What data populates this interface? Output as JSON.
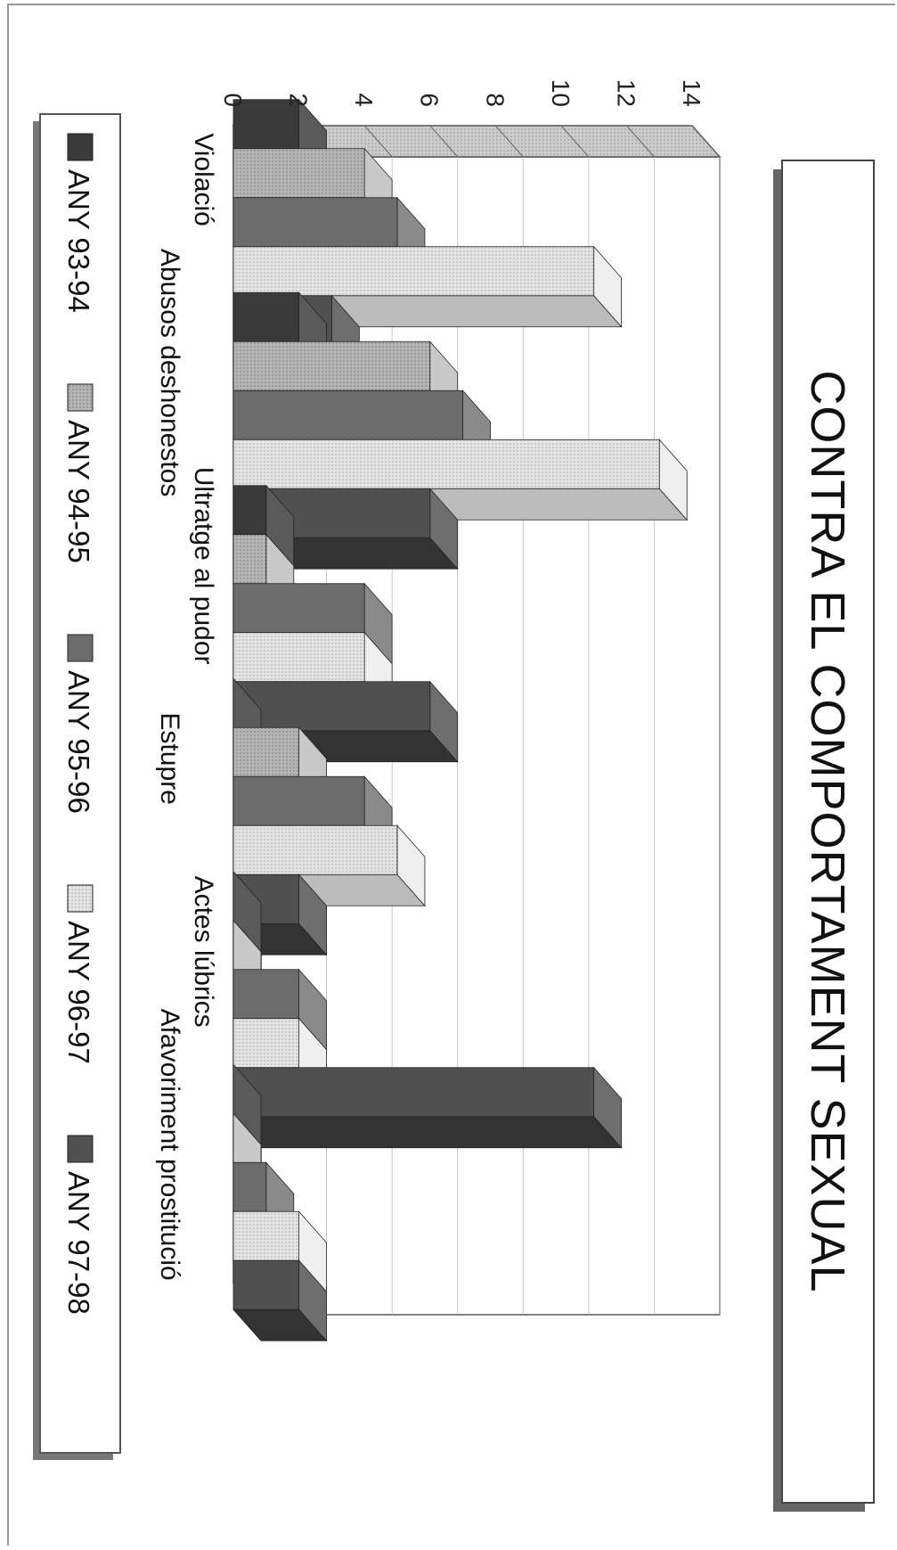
{
  "chart_data": {
    "type": "bar",
    "title": "CONTRA EL COMPORTAMENT SEXUAL",
    "categories": [
      "Violació",
      "Abusos deshonestos",
      "Ultratge al pudor",
      "Estupre",
      "Actes lúbrics",
      "Afavoriment prostitució"
    ],
    "series": [
      {
        "name": "ANY 93-94",
        "values": [
          2,
          2,
          1,
          0,
          0,
          0
        ]
      },
      {
        "name": "ANY 94-95",
        "values": [
          4,
          6,
          1,
          2,
          0,
          0
        ]
      },
      {
        "name": "ANY 95-96",
        "values": [
          5,
          7,
          4,
          4,
          2,
          1
        ]
      },
      {
        "name": "ANY 96-97",
        "values": [
          11,
          13,
          4,
          5,
          2,
          2
        ]
      },
      {
        "name": "ANY 97-98",
        "values": [
          3,
          6,
          6,
          2,
          11,
          2
        ]
      }
    ],
    "ylim": [
      0,
      14
    ],
    "yticks": [
      "0",
      "2",
      "4",
      "6",
      "8",
      "10",
      "12",
      "14"
    ],
    "grid": true,
    "legend_position": "bottom",
    "style": "3d-bars, rotated 90 degrees",
    "colors": {
      "s0": "#3a3a3a",
      "s1": "#a8a8a8",
      "s2": "#6c6c6c",
      "s3": "#dcdcdc",
      "s4": "#505050",
      "floor": "#c4c4c4",
      "wall": "#ffffff",
      "shadow": "#7a7a7a"
    }
  }
}
